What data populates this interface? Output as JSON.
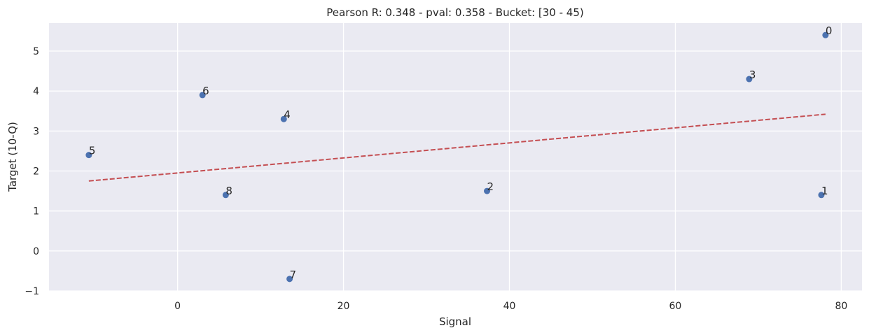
{
  "chart_data": {
    "type": "scatter",
    "title": "Pearson R: 0.348 - pval: 0.358 - Bucket: [30 - 45)",
    "xlabel": "Signal",
    "ylabel": "Target (10-Q)",
    "xlim": [
      -15.5,
      82.5
    ],
    "ylim": [
      -1.0,
      5.7
    ],
    "xticks": [
      0,
      20,
      40,
      60,
      80
    ],
    "yticks": [
      -1,
      0,
      1,
      2,
      3,
      4,
      5
    ],
    "ytick_labels": [
      "−1",
      "0",
      "1",
      "2",
      "3",
      "4",
      "5"
    ],
    "grid": true,
    "legend": null,
    "points": [
      {
        "label": "0",
        "x": 78.1,
        "y": 5.4
      },
      {
        "label": "1",
        "x": 77.6,
        "y": 1.4
      },
      {
        "label": "2",
        "x": 37.3,
        "y": 1.5
      },
      {
        "label": "3",
        "x": 68.9,
        "y": 4.3
      },
      {
        "label": "4",
        "x": 12.8,
        "y": 3.3
      },
      {
        "label": "5",
        "x": -10.7,
        "y": 2.4
      },
      {
        "label": "6",
        "x": 3.0,
        "y": 3.9
      },
      {
        "label": "7",
        "x": 13.5,
        "y": -0.7
      },
      {
        "label": "8",
        "x": 5.8,
        "y": 1.4
      }
    ],
    "fit_line": {
      "x": [
        -10.7,
        78.1
      ],
      "y": [
        1.75,
        3.42
      ],
      "style": "dashed"
    },
    "colors": {
      "background": "#eaeaf2",
      "grid": "#ffffff",
      "points": "#4c72b0",
      "fit_line": "#c44e52"
    }
  }
}
